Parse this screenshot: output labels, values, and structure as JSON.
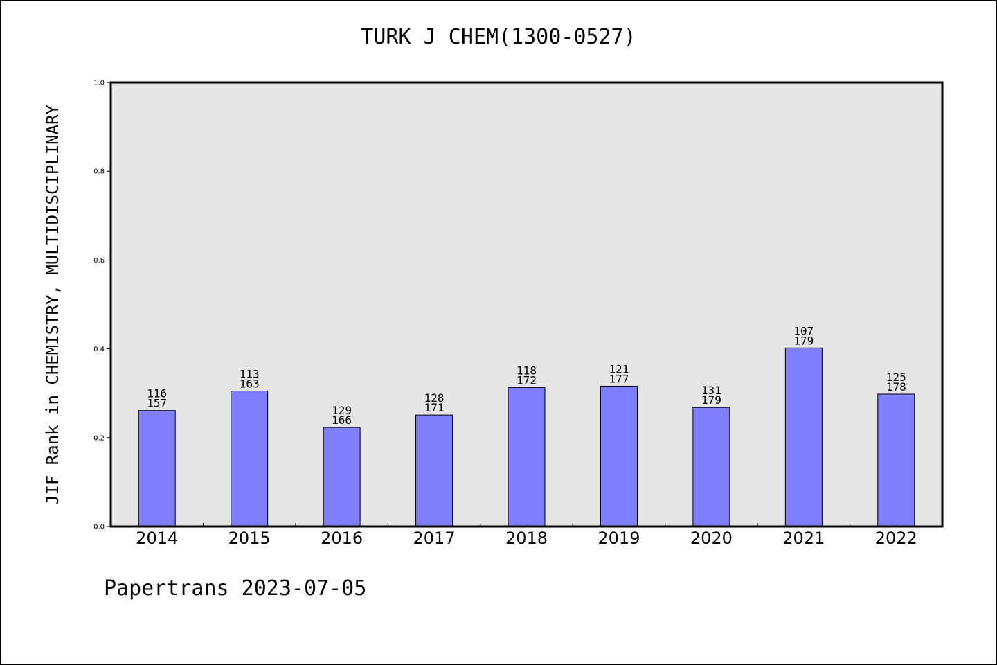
{
  "chart_data": {
    "type": "bar",
    "title": "TURK J CHEM(1300-0527)",
    "ylabel": "JIF Rank in CHEMISTRY, MULTIDISCIPLINARY",
    "xlabel": "",
    "ylim": [
      0.0,
      1.0
    ],
    "yticks": [
      "0.0",
      "0.2",
      "0.4",
      "0.6",
      "0.8",
      "1.0"
    ],
    "categories": [
      "2014",
      "2015",
      "2016",
      "2017",
      "2018",
      "2019",
      "2020",
      "2021",
      "2022"
    ],
    "values": [
      0.261,
      0.305,
      0.223,
      0.251,
      0.313,
      0.316,
      0.268,
      0.402,
      0.298
    ],
    "rank_labels": [
      {
        "rank": "116",
        "total": "157"
      },
      {
        "rank": "113",
        "total": "163"
      },
      {
        "rank": "129",
        "total": "166"
      },
      {
        "rank": "128",
        "total": "171"
      },
      {
        "rank": "118",
        "total": "172"
      },
      {
        "rank": "121",
        "total": "177"
      },
      {
        "rank": "131",
        "total": "179"
      },
      {
        "rank": "107",
        "total": "179"
      },
      {
        "rank": "125",
        "total": "178"
      }
    ],
    "grid": false,
    "bar_color": "#8080ff",
    "plot_background": "#e6e6e6"
  },
  "footer": "Papertrans 2023-07-05"
}
